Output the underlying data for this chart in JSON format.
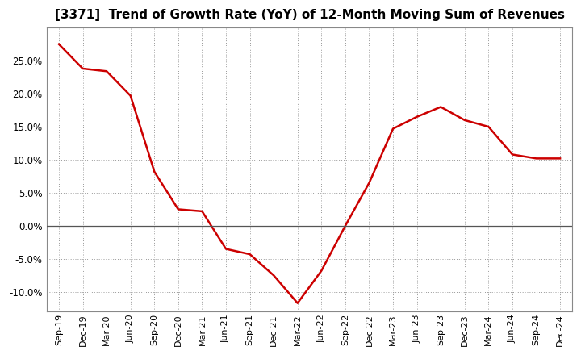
{
  "title": "[3371]  Trend of Growth Rate (YoY) of 12-Month Moving Sum of Revenues",
  "line_color": "#cc0000",
  "line_width": 1.8,
  "background_color": "#ffffff",
  "plot_background_color": "#ffffff",
  "grid_color": "#999999",
  "ylim": [
    -0.13,
    0.3
  ],
  "yticks": [
    -0.1,
    -0.05,
    0.0,
    0.05,
    0.1,
    0.15,
    0.2,
    0.25
  ],
  "x_labels": [
    "Sep-19",
    "Dec-19",
    "Mar-20",
    "Jun-20",
    "Sep-20",
    "Dec-20",
    "Mar-21",
    "Jun-21",
    "Sep-21",
    "Dec-21",
    "Mar-22",
    "Jun-22",
    "Sep-22",
    "Dec-22",
    "Mar-23",
    "Jun-23",
    "Sep-23",
    "Dec-23",
    "Mar-24",
    "Jun-24",
    "Sep-24",
    "Dec-24"
  ],
  "y_values": [
    0.275,
    0.238,
    0.234,
    0.197,
    0.082,
    0.025,
    0.022,
    -0.035,
    -0.043,
    -0.075,
    -0.117,
    -0.068,
    0.0,
    0.065,
    0.147,
    0.165,
    0.18,
    0.16,
    0.15,
    0.108,
    0.102,
    0.102
  ]
}
